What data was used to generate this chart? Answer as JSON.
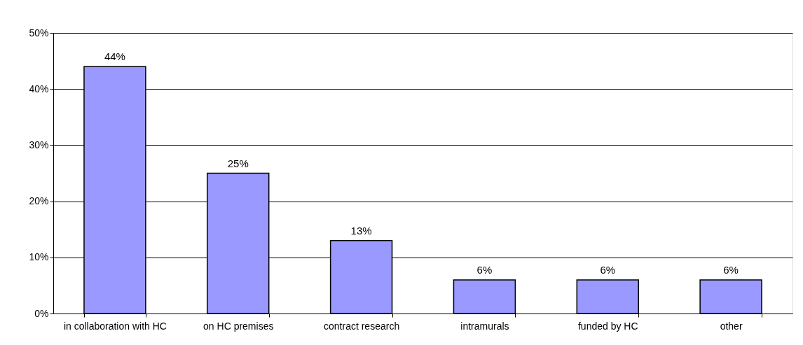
{
  "chart_data": {
    "type": "bar",
    "categories": [
      "in collaboration with HC",
      "on HC premises",
      "contract research",
      "intramurals",
      "funded by HC",
      "other"
    ],
    "values": [
      44,
      25,
      13,
      6,
      6,
      6
    ],
    "value_labels": [
      "44%",
      "25%",
      "13%",
      "6%",
      "6%",
      "6%"
    ],
    "color": "#9999ff",
    "ylim": [
      0,
      50
    ],
    "yticks": [
      {
        "value": 0,
        "label": "0%"
      },
      {
        "value": 10,
        "label": "10%"
      },
      {
        "value": 20,
        "label": "20%"
      },
      {
        "value": 30,
        "label": "30%"
      },
      {
        "value": 40,
        "label": "40%"
      },
      {
        "value": 50,
        "label": "50%"
      }
    ],
    "grid": "y"
  }
}
